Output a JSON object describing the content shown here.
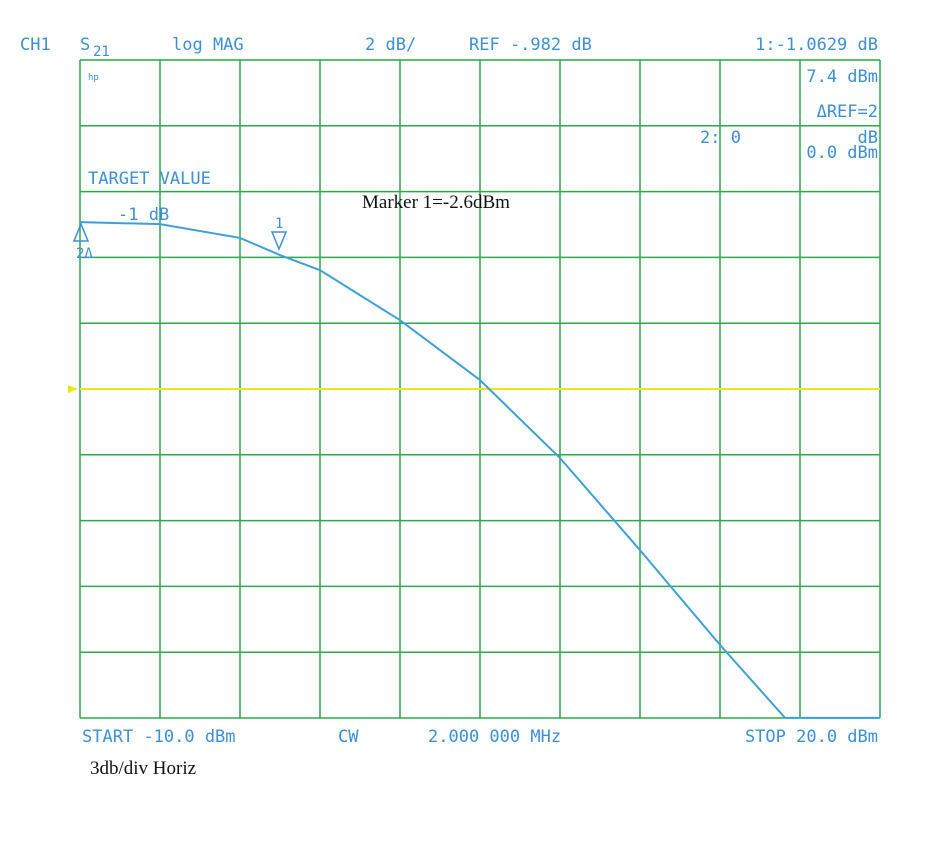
{
  "chart_data": {
    "type": "line",
    "channel": "CH1",
    "parameter": "S",
    "parameter_sub": "21",
    "format": "log MAG",
    "scale": "2 dB/",
    "reference": "REF -.982 dB",
    "marker_readout": "1:-1.0629 dB",
    "marker_stimulus": "7.4 dBm",
    "delta_ref": "ΔREF=2",
    "marker2_readout": "2: 0",
    "marker2_unit": "dB",
    "marker2_stimulus": "0.0 dBm",
    "logo": "hp",
    "target_label": "TARGET VALUE",
    "target_value": "-1 dB",
    "marker1_label": "1",
    "marker2_label": "2Δ",
    "annotation": "Marker 1=-2.6dBm",
    "start": "START -10.0 dBm",
    "mode": "CW",
    "cw_frequency": "2.000 000 MHz",
    "stop": "STOP 20.0 dBm",
    "note": "3db/div Horiz",
    "x": [
      -10,
      -7,
      -4,
      -2.5,
      -1,
      2,
      5,
      8,
      11,
      14,
      16.44,
      20
    ],
    "values": [
      4.09,
      4.03,
      3.61,
      3.09,
      2.63,
      1.11,
      -0.71,
      -3.08,
      -5.88,
      -8.76,
      -10.98,
      -10.98
    ],
    "color": "#3fa0d8",
    "xlim": [
      -10,
      20
    ],
    "ylim": [
      -10.982,
      9.018
    ],
    "xticks": [
      -10,
      -7,
      -4,
      -1,
      2,
      5,
      8,
      11,
      14,
      17,
      20
    ],
    "yticks": [
      -10.982,
      -8.982,
      -6.982,
      -4.982,
      -2.982,
      -0.982,
      1.018,
      3.018,
      5.018,
      7.018,
      9.018
    ],
    "reference_value": -0.982,
    "grid": true
  }
}
